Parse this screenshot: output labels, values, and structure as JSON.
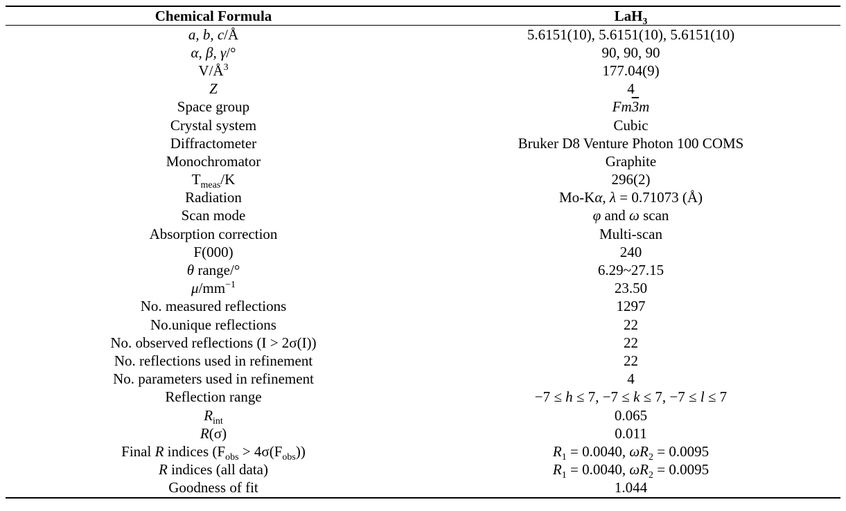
{
  "header": {
    "col1": "Chemical Formula",
    "col2": "LaH",
    "col2_sub": "3"
  },
  "rows": {
    "abc": {
      "lab_italic": "a, b, c",
      "lab_rest": "/Å",
      "val": "5.6151(10), 5.6151(10), 5.6151(10)"
    },
    "angles": {
      "lab_italic": "α, β, γ",
      "lab_rest": "/°",
      "val": "90, 90, 90"
    },
    "volume": {
      "lab": "V/Å",
      "lab_sup": "3",
      "val": "177.04(9)"
    },
    "z": {
      "lab_italic": "Z",
      "val": "4"
    },
    "space_group": {
      "lab": "Space group",
      "val_a": "Fm",
      "val_b": "3",
      "val_c": "m"
    },
    "crystal_system": {
      "lab": "Crystal system",
      "val": "Cubic"
    },
    "diffractometer": {
      "lab": "Diffractometer",
      "val": "Bruker D8 Venture Photon 100 COMS"
    },
    "monochromator": {
      "lab": "Monochromator",
      "val": "Graphite"
    },
    "tmeas": {
      "lab": "T",
      "lab_sub": "meas",
      "lab_rest": "/K",
      "val": "296(2)"
    },
    "radiation": {
      "lab": "Radiation",
      "val_a": "Mo-K",
      "val_b": "α",
      "val_c": ", ",
      "val_d": "λ",
      "val_e": " = 0.71073 (Å)"
    },
    "scan_mode": {
      "lab": "Scan mode",
      "val_a": "φ",
      "val_b": " and ",
      "val_c": "ω",
      "val_d": " scan"
    },
    "absorption": {
      "lab": "Absorption correction",
      "val": "Multi-scan"
    },
    "f000": {
      "lab": "F(000)",
      "val": "240"
    },
    "theta": {
      "lab_italic": "θ",
      "lab_rest": " range/°",
      "val": "6.29~27.15"
    },
    "mu": {
      "lab_italic": "μ",
      "lab_rest": "/mm",
      "lab_sup": "−1",
      "val": "23.50"
    },
    "measured": {
      "lab": "No. measured reflections",
      "val": "1297"
    },
    "unique": {
      "lab": "No.unique reflections",
      "val": "22"
    },
    "observed": {
      "lab": "No. observed reflections (I > 2σ(I))",
      "val": "22"
    },
    "refl_used": {
      "lab": "No. reflections used in refinement",
      "val": "22"
    },
    "params_used": {
      "lab": "No. parameters used in refinement",
      "val": "4"
    },
    "refl_range": {
      "lab": "Reflection range",
      "val_a": "−7 ≤ ",
      "val_b": "h",
      "val_c": " ≤ 7, −7 ≤ ",
      "val_d": "k",
      "val_e": " ≤ 7, −7 ≤ ",
      "val_f": "l",
      "val_g": " ≤ 7"
    },
    "rint": {
      "lab_italic": "R",
      "lab_sub": "int",
      "val": "0.065"
    },
    "rsigma": {
      "lab_italic": "R",
      "lab_rest": "(σ)",
      "val": "0.011"
    },
    "final_r": {
      "lab_a": "Final ",
      "lab_b": "R",
      "lab_c": " indices (F",
      "lab_d": "obs",
      "lab_e": " > 4σ(F",
      "lab_f": "obs",
      "lab_g": "))",
      "val_a": "R",
      "val_b": "1",
      "val_c": " = 0.0040, ",
      "val_d": "ωR",
      "val_e": "2",
      "val_f": " = 0.0095"
    },
    "r_all": {
      "lab_italic": "R",
      "lab_rest": " indices (all data)",
      "val_a": "R",
      "val_b": "1",
      "val_c": " = 0.0040, ",
      "val_d": "ωR",
      "val_e": "2",
      "val_f": " = 0.0095"
    },
    "gof": {
      "lab": "Goodness of fit",
      "val": "1.044"
    }
  }
}
